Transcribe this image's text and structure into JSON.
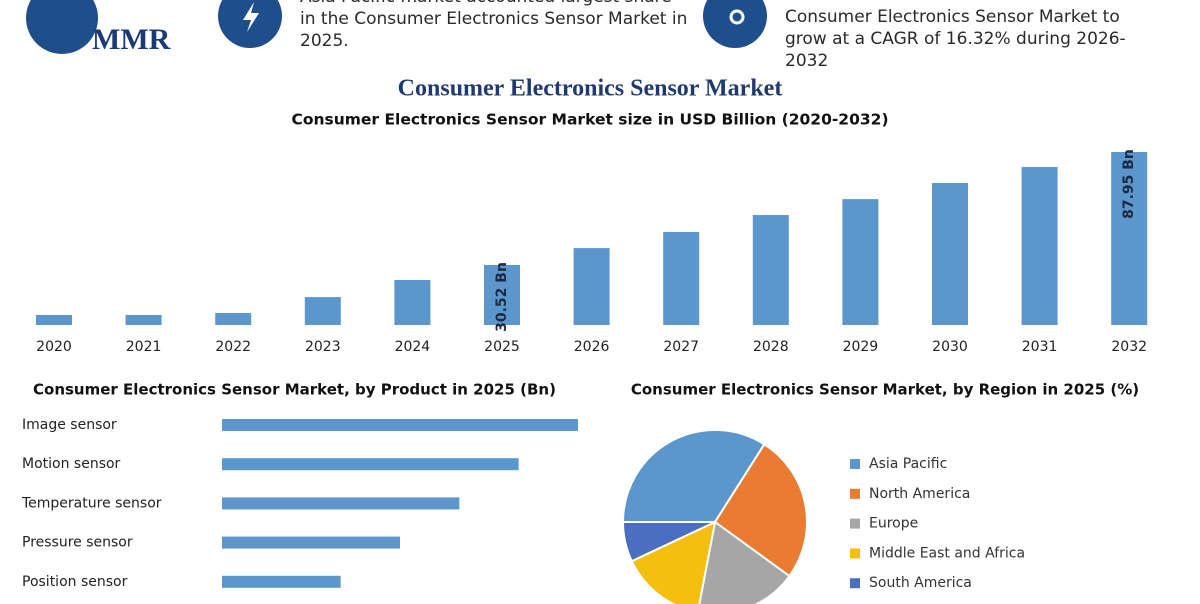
{
  "header": {
    "logo": "MMR",
    "left_note": "Asia Pacific market accounted largest share in the Consumer Electronics Sensor Market in 2025.",
    "right_note": "Consumer Electronics Sensor Market to grow at a CAGR of 16.32% during 2026-2032"
  },
  "chart_data": [
    {
      "type": "bar",
      "title": "Consumer Electronics Sensor Market",
      "subtitle": "Consumer Electronics Sensor Market size in USD Billion (2020-2032)",
      "categories": [
        "2020",
        "2021",
        "2022",
        "2023",
        "2024",
        "2025",
        "2026",
        "2027",
        "2028",
        "2029",
        "2030",
        "2031",
        "2032"
      ],
      "values": [
        5.1,
        5.1,
        6.1,
        14.2,
        22.9,
        30.52,
        39.1,
        47.3,
        55.9,
        64.0,
        72.2,
        80.3,
        87.95
      ],
      "value_labels": [
        null,
        null,
        null,
        null,
        null,
        "30.52 Bn",
        null,
        null,
        null,
        null,
        null,
        null,
        "87.95 Bn"
      ],
      "color": "#5b96cd"
    },
    {
      "type": "hbar",
      "title": "Consumer Electronics Sensor Market, by Product in 2025 (Bn)",
      "categories": [
        "Image sensor",
        "Motion sensor",
        "Temperature sensor",
        "Pressure sensor",
        "Position sensor"
      ],
      "values": [
        9,
        7.5,
        6,
        4.5,
        3
      ],
      "color": "#5b96cd"
    },
    {
      "type": "pie",
      "title": "Consumer Electronics Sensor Market, by Region in 2025 (%)",
      "categories": [
        "Asia Pacific",
        "North America",
        "Europe",
        "Middle East and Africa",
        "South America"
      ],
      "values": [
        34,
        26,
        18,
        15,
        7
      ],
      "colors": [
        "#5b96cd",
        "#e97c32",
        "#a6a6a6",
        "#f5bf0f",
        "#4a6fc0"
      ]
    }
  ]
}
